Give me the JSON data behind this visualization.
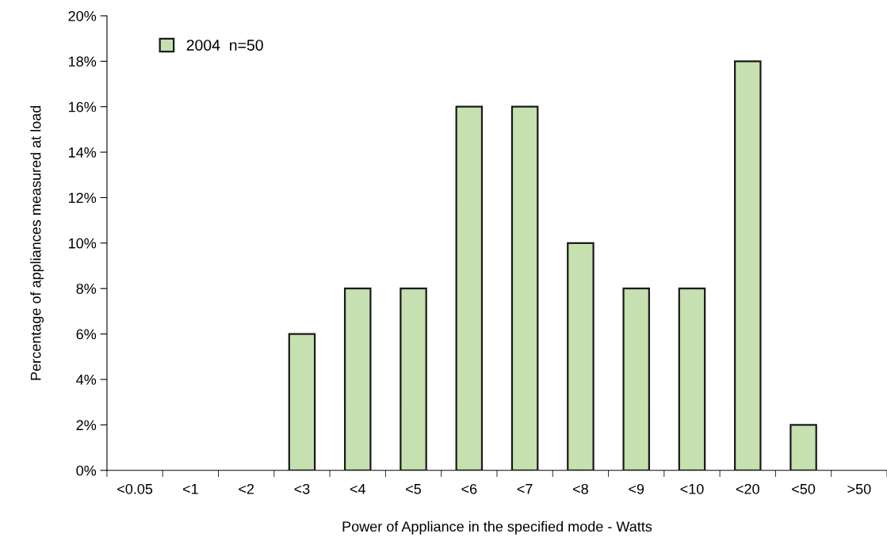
{
  "chart_data": {
    "type": "bar",
    "xlabel": "Power of Appliance in the specified mode - Watts",
    "ylabel": "Percentage of appliances measured at load",
    "categories": [
      "<0.05",
      "<1",
      "<2",
      "<3",
      "<4",
      "<5",
      "<6",
      "<7",
      "<8",
      "<9",
      "<10",
      "<20",
      "<50",
      ">50"
    ],
    "series": [
      {
        "name": "2004  n=50",
        "color": "#c6e0b0",
        "values": [
          0,
          0,
          0,
          6,
          8,
          8,
          16,
          16,
          10,
          8,
          8,
          18,
          2,
          0
        ]
      }
    ],
    "ylim": [
      0,
      20
    ],
    "yticks": [
      {
        "value": 0,
        "label": "0%"
      },
      {
        "value": 2,
        "label": "2%"
      },
      {
        "value": 4,
        "label": "4%"
      },
      {
        "value": 6,
        "label": "6%"
      },
      {
        "value": 8,
        "label": "8%"
      },
      {
        "value": 10,
        "label": "10%"
      },
      {
        "value": 12,
        "label": "12%"
      },
      {
        "value": 14,
        "label": "14%"
      },
      {
        "value": 16,
        "label": "16%"
      },
      {
        "value": 18,
        "label": "18%"
      },
      {
        "value": 20,
        "label": "20%"
      }
    ],
    "grid": false,
    "legend": "top left"
  }
}
